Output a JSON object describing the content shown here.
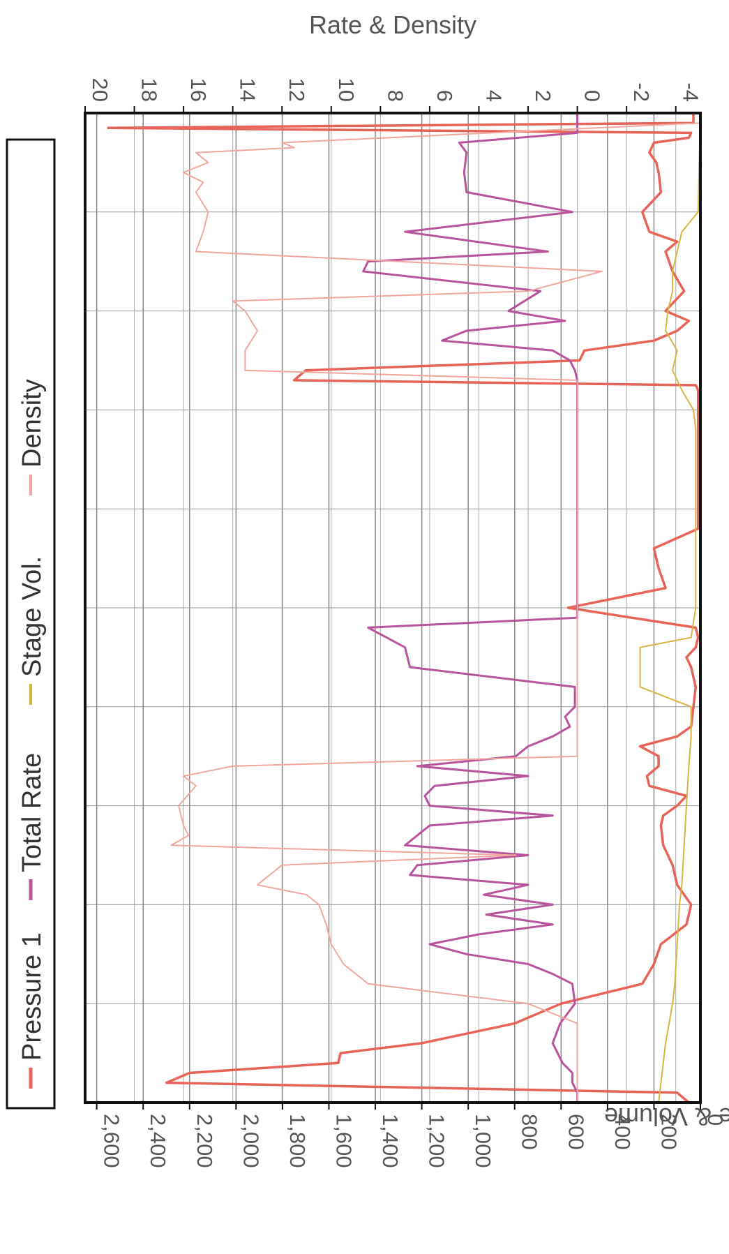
{
  "chart_data": {
    "type": "line",
    "orientation": "rotated 90 degrees clockwise",
    "left_axis": {
      "label": "Pressure & Volume",
      "ticks": [
        "0",
        "200",
        "400",
        "600",
        "800",
        "1,000",
        "1,200",
        "1,400",
        "1,600",
        "1,800",
        "2,000",
        "2,200",
        "2,400",
        "2,600"
      ],
      "range": [
        0,
        2650
      ]
    },
    "right_axis": {
      "label": "Rate & Density",
      "ticks": [
        "-4",
        "-2",
        "0",
        "2",
        "4",
        "6",
        "8",
        "10",
        "12",
        "14",
        "16",
        "18",
        "20"
      ],
      "range": [
        -5,
        20
      ]
    },
    "x_range": [
      0,
      100
    ],
    "grid": true,
    "legend": {
      "position": "top",
      "entries": [
        {
          "name": "Pressure 1",
          "color": "#e86459"
        },
        {
          "name": "Total Rate",
          "color": "#b8549c"
        },
        {
          "name": "Stage Vol.",
          "color": "#d8b440"
        },
        {
          "name": "Density",
          "color": "#f0a79f"
        }
      ]
    },
    "series": [
      {
        "name": "Pressure 1",
        "axis": "left",
        "color": "#e86459",
        "x": [
          0,
          1,
          1.5,
          2,
          2.5,
          3,
          4,
          5,
          6,
          8,
          10,
          12,
          13,
          14,
          16,
          18,
          20,
          21,
          22,
          23,
          24,
          25,
          26,
          27,
          27.5,
          28,
          29,
          30,
          31,
          32,
          33,
          34,
          36,
          38,
          40,
          42,
          44,
          46,
          48,
          50,
          52,
          53,
          54,
          55,
          56,
          58,
          60,
          62,
          63,
          64,
          65,
          66,
          67,
          68,
          69,
          70,
          71,
          72,
          74,
          76,
          78,
          80,
          82,
          84,
          86,
          88,
          90,
          92,
          93,
          94,
          95,
          96,
          97,
          98,
          99,
          100
        ],
        "y": [
          30,
          30,
          2550,
          40,
          50,
          200,
          220,
          190,
          180,
          170,
          250,
          220,
          100,
          150,
          120,
          70,
          150,
          50,
          100,
          200,
          500,
          520,
          1700,
          1750,
          20,
          10,
          10,
          10,
          10,
          10,
          10,
          10,
          10,
          10,
          10,
          10,
          200,
          180,
          150,
          570,
          20,
          10,
          20,
          60,
          40,
          20,
          30,
          40,
          100,
          260,
          180,
          180,
          230,
          220,
          60,
          100,
          160,
          170,
          160,
          120,
          100,
          40,
          60,
          170,
          200,
          250,
          600,
          800,
          1000,
          1200,
          1550,
          1560,
          2200,
          2300,
          100,
          50
        ]
      },
      {
        "name": "Total Rate",
        "axis": "right",
        "color": "#b8549c",
        "x": [
          0,
          2,
          3,
          4,
          6,
          8,
          10,
          12,
          14,
          15,
          16,
          18,
          20,
          21,
          22,
          23,
          24,
          25,
          26,
          27,
          28,
          30,
          32,
          34,
          36,
          38,
          40,
          42,
          44,
          46,
          48,
          50,
          51,
          52,
          54,
          56,
          58,
          60,
          61,
          62,
          63,
          64,
          65,
          66,
          67,
          68,
          69,
          70,
          71,
          72,
          73,
          74,
          75,
          76,
          77,
          78,
          79,
          80,
          81,
          82,
          83,
          84,
          85,
          86,
          87,
          88,
          90,
          92,
          94,
          96,
          97,
          98,
          99,
          100
        ],
        "y": [
          0,
          0,
          4.8,
          4.5,
          4.6,
          4.5,
          0.2,
          7,
          1.2,
          8.5,
          8.7,
          1.5,
          2.8,
          0.5,
          4.5,
          5.5,
          1.0,
          0.3,
          0.1,
          0,
          0,
          0,
          0,
          0,
          0,
          0,
          0,
          0,
          0,
          0,
          0,
          0,
          0,
          8.5,
          7.0,
          6.8,
          0.1,
          0.1,
          0.5,
          0.3,
          1.0,
          2.0,
          2.5,
          6.5,
          2.0,
          5.8,
          6.2,
          6.0,
          1.0,
          6.0,
          6.5,
          7.0,
          2.0,
          6.5,
          6.8,
          2.0,
          3.8,
          1.0,
          3.7,
          1.0,
          4.0,
          6.0,
          4.5,
          2.0,
          1.0,
          0.2,
          0.1,
          0.7,
          1.0,
          0.6,
          0.2,
          0.2,
          0,
          0
        ]
      },
      {
        "name": "Stage Vol.",
        "axis": "left",
        "color": "#d8b440",
        "x": [
          0,
          10,
          12,
          14,
          16,
          18,
          20,
          22,
          24,
          26,
          28,
          30,
          32,
          40,
          50,
          53,
          54,
          58,
          60,
          62,
          63,
          66,
          70,
          74,
          78,
          80,
          84,
          88,
          90,
          94,
          98,
          100
        ],
        "y": [
          0,
          10,
          80,
          100,
          120,
          120,
          140,
          150,
          100,
          120,
          80,
          30,
          20,
          20,
          20,
          40,
          260,
          260,
          40,
          40,
          40,
          50,
          60,
          70,
          80,
          90,
          100,
          110,
          120,
          150,
          170,
          180
        ]
      },
      {
        "name": "Density",
        "axis": "right",
        "color": "#f0a79f",
        "x": [
          0,
          1,
          3,
          3.5,
          4,
          5,
          6,
          7,
          8,
          10,
          12,
          14,
          16,
          18,
          19,
          20,
          22,
          24,
          26,
          27,
          28,
          30,
          36,
          40,
          50,
          60,
          62,
          63,
          64,
          65,
          66,
          67,
          68,
          70,
          72,
          73,
          74,
          75,
          76,
          78,
          79,
          80,
          82,
          84,
          86,
          88,
          90,
          92,
          94,
          96,
          98,
          100
        ],
        "y": [
          -5,
          -5,
          12,
          11.5,
          15.5,
          15,
          16,
          15.2,
          15.5,
          15,
          15.2,
          15.5,
          -1,
          2.0,
          14,
          13.5,
          13,
          13.5,
          13.5,
          0,
          0,
          0,
          0,
          0,
          0,
          0,
          0,
          0,
          0,
          0,
          14,
          16,
          15.5,
          16.2,
          16.0,
          15.8,
          16.5,
          2.5,
          12,
          13,
          11,
          10.5,
          10.2,
          10.0,
          9.5,
          8.5,
          2,
          0,
          0,
          0,
          0,
          0
        ]
      }
    ]
  }
}
